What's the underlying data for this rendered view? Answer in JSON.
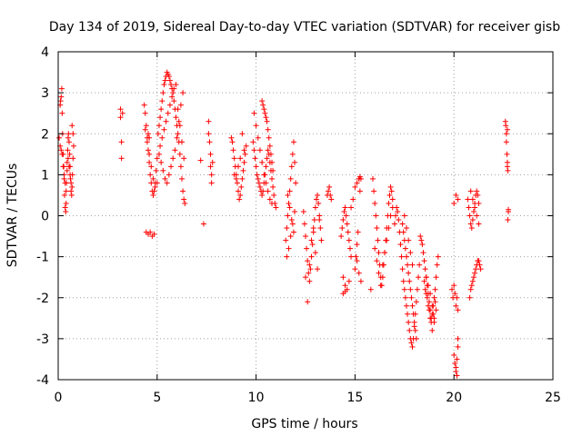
{
  "chart_data": {
    "type": "scatter",
    "title": "Day 134 of 2019, Sidereal Day-to-day VTEC variation (SDTVAR) for receiver gisb",
    "xlabel": "GPS time / hours",
    "ylabel": "SDTVAR / TECUs",
    "xlim": [
      0,
      25
    ],
    "ylim": [
      -4,
      4
    ],
    "xticks": [
      "0",
      "5",
      "10",
      "15",
      "20",
      "25"
    ],
    "yticks": [
      "-4",
      "-3",
      "-2",
      "-1",
      "0",
      "1",
      "2",
      "3",
      "4"
    ],
    "grid": true,
    "marker": "+",
    "color": "#ff0000",
    "series": [
      {
        "name": "SDTVAR",
        "x": [
          0.05,
          0.1,
          0.12,
          0.15,
          0.18,
          0.2,
          0.22,
          0.25,
          0.28,
          0.3,
          0.32,
          0.35,
          0.38,
          0.4,
          0.42,
          0.45,
          0.48,
          0.5,
          0.52,
          0.55,
          0.58,
          0.6,
          0.62,
          0.65,
          0.68,
          0.7,
          0.72,
          0.75,
          0.78,
          0.1,
          0.15,
          0.2,
          0.25,
          0.3,
          0.35,
          0.4,
          0.45,
          0.5,
          0.55,
          0.6,
          0.65,
          0.7,
          0.75,
          3.15,
          3.15,
          3.2,
          3.2,
          3.25,
          4.35,
          4.4,
          4.45,
          4.5,
          4.55,
          4.6,
          4.65,
          4.7,
          4.75,
          4.8,
          4.85,
          4.9,
          4.95,
          5.0,
          4.4,
          4.5,
          4.6,
          4.7,
          4.8,
          4.9,
          5.0,
          4.45,
          4.55,
          4.65,
          4.75,
          4.85,
          4.55,
          4.6,
          5.05,
          5.1,
          5.15,
          5.2,
          5.25,
          5.3,
          5.35,
          5.4,
          5.45,
          5.5,
          5.55,
          5.6,
          5.65,
          5.7,
          5.75,
          5.8,
          5.85,
          5.9,
          5.95,
          6.0,
          6.05,
          6.1,
          6.15,
          6.2,
          6.25,
          6.3,
          6.35,
          6.4,
          5.1,
          5.2,
          5.3,
          5.4,
          5.5,
          5.6,
          5.7,
          5.8,
          5.9,
          6.0,
          6.1,
          6.2,
          6.3,
          5.15,
          5.25,
          5.35,
          5.45,
          5.55,
          5.65,
          5.75,
          5.85,
          5.95,
          6.05,
          6.15,
          6.25,
          6.35,
          7.2,
          7.35,
          7.6,
          7.6,
          7.65,
          7.7,
          7.7,
          7.75,
          7.75,
          7.8,
          8.75,
          8.8,
          8.85,
          8.9,
          8.95,
          9.0,
          9.05,
          9.1,
          9.15,
          9.2,
          9.25,
          9.3,
          9.35,
          9.4,
          9.45,
          9.5,
          8.9,
          9.0,
          9.1,
          9.2,
          9.3,
          9.4,
          9.85,
          9.9,
          9.95,
          10.0,
          10.05,
          10.1,
          10.15,
          10.2,
          10.25,
          10.3,
          10.35,
          10.4,
          10.45,
          10.5,
          10.55,
          10.6,
          10.65,
          10.7,
          10.75,
          10.8,
          10.85,
          10.9,
          10.95,
          11.0,
          9.9,
          10.0,
          10.1,
          10.2,
          10.3,
          10.4,
          10.5,
          10.6,
          10.7,
          10.8,
          10.3,
          10.35,
          10.4,
          10.45,
          10.5,
          10.55,
          10.6,
          10.65,
          10.7,
          10.75,
          10.8,
          10.85,
          11.5,
          11.55,
          11.6,
          11.65,
          11.7,
          11.75,
          11.8,
          11.85,
          11.9,
          11.95,
          12.0,
          11.55,
          11.65,
          11.75,
          11.85,
          11.95,
          11.6,
          11.7,
          11.8,
          11.9,
          12.4,
          12.45,
          12.5,
          12.55,
          12.6,
          12.65,
          12.7,
          12.75,
          12.8,
          12.85,
          12.9,
          12.95,
          13.0,
          13.05,
          13.1,
          13.15,
          13.2,
          13.25,
          13.3,
          12.5,
          12.6,
          12.7,
          12.8,
          12.9,
          13.0,
          13.1,
          13.2,
          13.6,
          13.65,
          13.7,
          13.75,
          13.8,
          14.3,
          14.35,
          14.4,
          14.45,
          14.5,
          14.55,
          14.6,
          14.65,
          14.7,
          14.75,
          14.8,
          14.4,
          14.5,
          14.6,
          14.7,
          14.4,
          14.5,
          15.0,
          15.05,
          15.1,
          15.15,
          15.2,
          15.25,
          15.3,
          15.1,
          15.2,
          15.3,
          15.0,
          15.1,
          15.2,
          15.25,
          14.8,
          14.9,
          15.8,
          15.9,
          15.95,
          16.0,
          16.05,
          16.1,
          16.15,
          16.2,
          16.25,
          16.3,
          16.35,
          16.4,
          16.45,
          16.5,
          16.55,
          16.6,
          16.65,
          16.7,
          16.75,
          16.8,
          16.85,
          16.9,
          16.0,
          16.1,
          16.2,
          16.3,
          16.4,
          16.5,
          16.6,
          16.7,
          16.8,
          16.9,
          17.0,
          17.05,
          17.1,
          17.15,
          17.2,
          17.25,
          17.3,
          17.35,
          17.4,
          17.45,
          17.5,
          17.55,
          17.6,
          17.65,
          17.7,
          17.75,
          17.8,
          17.85,
          17.9,
          17.95,
          18.0,
          18.05,
          18.1,
          18.15,
          18.2,
          18.25,
          17.4,
          17.45,
          17.5,
          17.55,
          17.6,
          17.65,
          17.7,
          17.75,
          17.8,
          17.85,
          17.9,
          17.95,
          18.0,
          18.05,
          18.1,
          17.5,
          17.6,
          17.7,
          17.8,
          17.9,
          18.3,
          18.35,
          18.4,
          18.45,
          18.5,
          18.55,
          18.6,
          18.65,
          18.7,
          18.75,
          18.8,
          18.85,
          18.9,
          18.95,
          19.0,
          19.05,
          19.1,
          19.15,
          19.2,
          18.5,
          18.6,
          18.7,
          18.8,
          18.9,
          19.0,
          19.1,
          18.55,
          18.65,
          18.75,
          18.85,
          18.95,
          19.05,
          18.6,
          18.7,
          18.8,
          18.9,
          19.0,
          19.9,
          19.95,
          20.0,
          20.05,
          20.1,
          20.15,
          20.2,
          20.0,
          20.1,
          20.2,
          20.0,
          20.05,
          20.1,
          20.15,
          20.2,
          20.1,
          20.15,
          20.2,
          20.7,
          20.75,
          20.8,
          20.85,
          20.9,
          20.95,
          21.0,
          21.05,
          21.1,
          21.15,
          21.2,
          21.25,
          20.8,
          20.85,
          20.9,
          20.95,
          21.0,
          21.05,
          21.1,
          21.15,
          21.2,
          21.25,
          21.3,
          21.35,
          20.85,
          20.95,
          21.05,
          21.15,
          21.25,
          22.6,
          22.62,
          22.65,
          22.65,
          22.68,
          22.7,
          22.7,
          22.72,
          22.75,
          22.75,
          22.72,
          22.7
        ],
        "y": [
          1.9,
          2.7,
          2.8,
          2.9,
          3.1,
          2.5,
          2.0,
          1.5,
          1.2,
          0.9,
          0.5,
          0.2,
          0.1,
          0.3,
          0.8,
          1.3,
          1.6,
          1.9,
          2.0,
          1.8,
          1.5,
          1.2,
          0.9,
          0.6,
          0.5,
          0.7,
          1.0,
          1.4,
          1.7,
          1.7,
          1.6,
          1.5,
          1.2,
          1.0,
          0.8,
          0.6,
          1.1,
          1.4,
          1.2,
          1.0,
          0.8,
          2.2,
          2.0,
          2.6,
          2.4,
          1.8,
          1.4,
          2.5,
          2.7,
          2.5,
          2.2,
          1.9,
          1.6,
          1.3,
          1.0,
          0.8,
          0.6,
          0.5,
          0.6,
          0.8,
          1.1,
          1.4,
          2.1,
          1.8,
          1.5,
          1.2,
          0.9,
          0.7,
          0.8,
          -0.4,
          -0.45,
          -0.4,
          -0.5,
          -0.45,
          2.0,
          1.9,
          2.0,
          2.2,
          2.4,
          2.6,
          2.8,
          3.0,
          3.2,
          3.3,
          3.4,
          3.5,
          3.45,
          3.4,
          3.3,
          3.2,
          3.1,
          3.0,
          2.8,
          2.6,
          2.4,
          2.2,
          2.0,
          1.8,
          1.5,
          1.2,
          0.9,
          0.6,
          0.4,
          0.3,
          1.5,
          1.3,
          1.1,
          0.9,
          0.8,
          1.0,
          1.2,
          1.4,
          1.6,
          1.9,
          2.3,
          2.7,
          3.0,
          1.7,
          1.9,
          2.1,
          2.3,
          2.5,
          2.7,
          2.9,
          3.1,
          3.2,
          2.6,
          2.2,
          1.8,
          1.4,
          1.35,
          -0.2,
          2.3,
          2.0,
          1.8,
          1.5,
          1.2,
          1.0,
          0.8,
          1.3,
          1.9,
          1.8,
          1.6,
          1.4,
          1.2,
          1.0,
          0.8,
          0.6,
          0.4,
          0.5,
          0.7,
          0.9,
          1.1,
          1.3,
          1.5,
          1.7,
          1.0,
          0.9,
          1.2,
          1.4,
          2.0,
          1.6,
          1.8,
          1.6,
          1.4,
          1.2,
          1.0,
          0.9,
          0.8,
          0.7,
          0.6,
          0.5,
          0.6,
          0.8,
          1.0,
          1.2,
          1.4,
          1.6,
          1.5,
          1.3,
          1.1,
          0.9,
          0.7,
          0.5,
          0.3,
          0.2,
          2.5,
          2.2,
          1.9,
          1.6,
          1.3,
          1.0,
          0.8,
          0.6,
          0.4,
          0.3,
          2.8,
          2.7,
          2.6,
          2.5,
          2.4,
          2.3,
          2.1,
          1.9,
          1.7,
          1.5,
          1.3,
          1.1,
          -0.6,
          -0.3,
          0.0,
          0.3,
          0.6,
          0.9,
          1.2,
          1.5,
          1.8,
          1.3,
          0.8,
          -1.0,
          -0.8,
          -0.5,
          -0.2,
          0.1,
          0.5,
          0.2,
          -0.1,
          -0.4,
          0.1,
          -0.2,
          -0.5,
          -0.8,
          -1.1,
          -1.4,
          -1.6,
          -1.3,
          -1.0,
          -0.7,
          -0.4,
          -0.1,
          0.2,
          0.4,
          0.5,
          0.3,
          0.0,
          -0.3,
          -0.6,
          -1.5,
          -2.1,
          -1.2,
          -0.6,
          -0.3,
          -0.9,
          -1.3,
          -0.1,
          0.5,
          0.6,
          0.7,
          0.5,
          0.4,
          -0.5,
          -0.3,
          -0.1,
          0.1,
          0.2,
          0.0,
          -0.2,
          -0.4,
          -0.6,
          -0.8,
          -1.0,
          -1.5,
          -1.7,
          -1.8,
          -1.6,
          -1.9,
          -1.85,
          -1.3,
          -1.0,
          -0.7,
          -0.4,
          0.9,
          0.95,
          0.9,
          -1.1,
          -1.4,
          -1.6,
          0.7,
          0.8,
          0.9,
          0.6,
          0.2,
          0.4,
          -1.8,
          0.9,
          0.6,
          0.3,
          0.0,
          -0.3,
          -0.6,
          -0.9,
          -1.2,
          -1.5,
          -1.7,
          -1.5,
          -1.2,
          -0.9,
          -0.6,
          -0.3,
          0.0,
          0.3,
          0.5,
          0.7,
          0.6,
          0.4,
          -0.8,
          -1.1,
          -1.4,
          -1.7,
          -1.2,
          -0.9,
          -0.6,
          -0.3,
          0.0,
          0.2,
          -0.2,
          0.0,
          0.2,
          0.1,
          -0.1,
          -0.4,
          -0.7,
          -1.0,
          -1.3,
          -1.6,
          -1.8,
          -2.0,
          -2.2,
          -2.4,
          -2.6,
          -2.8,
          -3.0,
          -3.1,
          -3.2,
          -3.0,
          -2.7,
          -2.4,
          -2.1,
          -1.8,
          -1.5,
          -1.2,
          -0.2,
          -0.4,
          -0.6,
          -0.8,
          -1.0,
          -1.2,
          -1.4,
          -1.6,
          -1.8,
          -2.0,
          -2.2,
          -2.4,
          -2.6,
          -2.8,
          -3.0,
          0.0,
          -0.3,
          -0.6,
          -0.9,
          -1.2,
          -0.5,
          -0.6,
          -0.7,
          -0.9,
          -1.1,
          -1.3,
          -1.5,
          -1.7,
          -1.9,
          -2.1,
          -2.3,
          -2.5,
          -2.4,
          -2.2,
          -2.0,
          -1.8,
          -1.5,
          -1.2,
          -1.0,
          -1.6,
          -1.9,
          -2.2,
          -2.5,
          -2.8,
          -2.6,
          -2.3,
          -1.8,
          -2.0,
          -2.3,
          -2.6,
          -2.4,
          -2.1,
          -1.5,
          -1.7,
          -1.9,
          -2.2,
          -2.5,
          -1.8,
          -2.0,
          -3.4,
          -3.6,
          -3.7,
          -3.5,
          -3.2,
          0.3,
          0.5,
          0.4,
          -1.7,
          -1.9,
          -2.2,
          -2.0,
          -2.3,
          -3.8,
          -3.9,
          -3.0,
          0.4,
          0.2,
          0.0,
          -0.2,
          -0.3,
          -0.1,
          0.1,
          0.3,
          0.5,
          0.6,
          0.5,
          0.3,
          -2.0,
          -1.8,
          -1.7,
          -1.6,
          -1.5,
          -1.4,
          -1.3,
          -1.2,
          -1.1,
          -1.1,
          -1.2,
          -1.3,
          0.6,
          0.4,
          0.2,
          0.0,
          -0.2,
          2.3,
          2.2,
          2.0,
          1.8,
          1.5,
          1.3,
          1.2,
          1.1,
          0.15,
          0.1,
          -0.1,
          2.1
        ]
      }
    ]
  }
}
